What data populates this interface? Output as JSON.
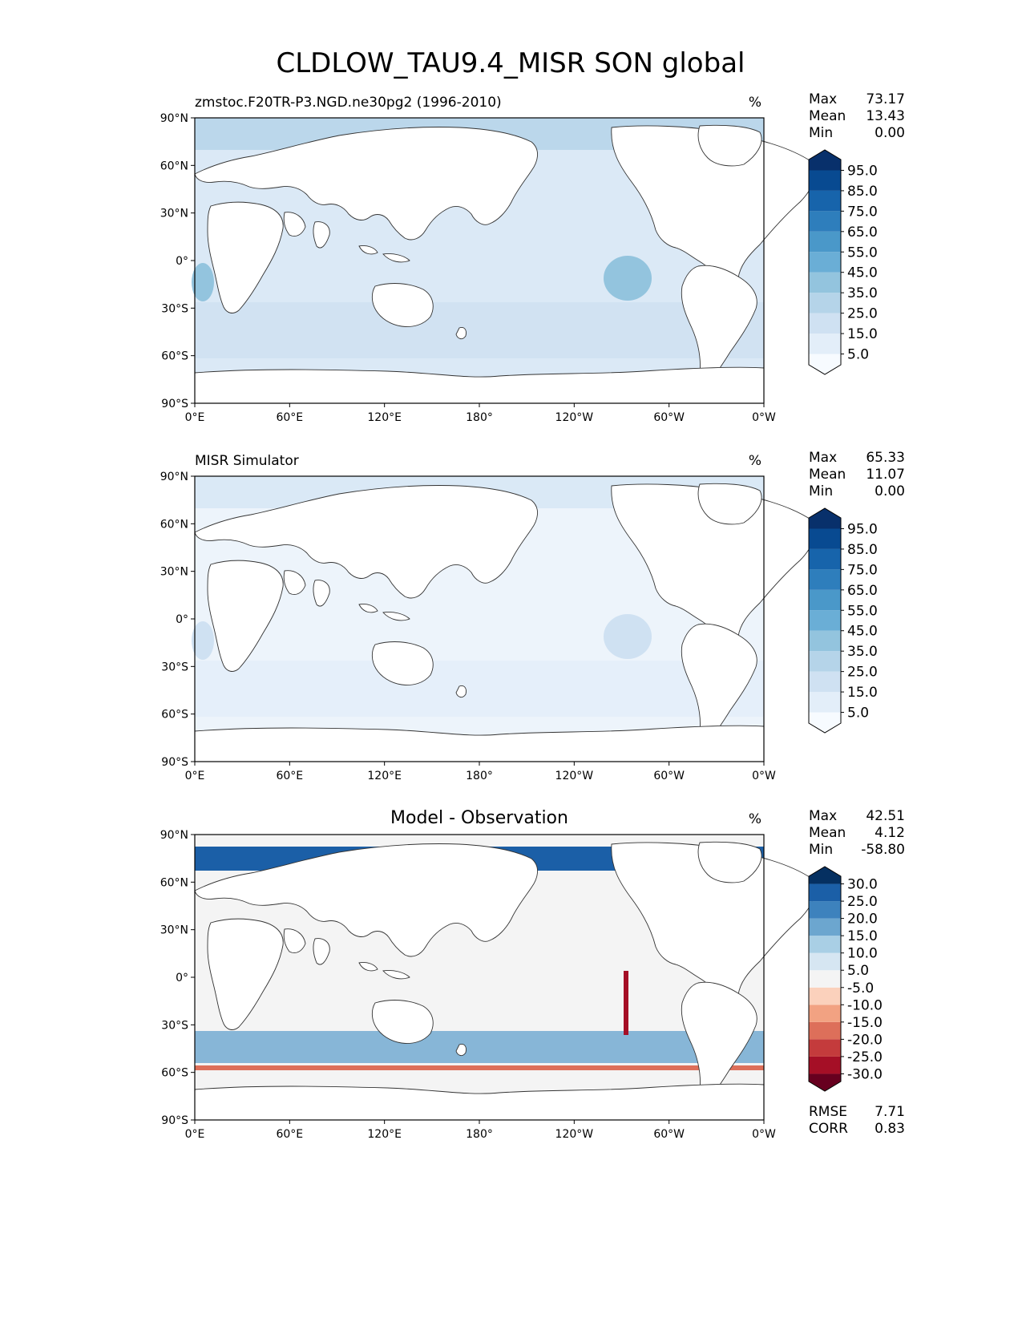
{
  "figure_title": "CLDLOW_TAU9.4_MISR SON global",
  "panels": [
    {
      "id": "test",
      "left_title": "zmstoc.F20TR-P3.NGD.ne30pg2 (1996-2010)",
      "center_title": "",
      "units": "%",
      "stats": [
        {
          "label": "Max",
          "value": "73.17"
        },
        {
          "label": "Mean",
          "value": "13.43"
        },
        {
          "label": "Min",
          "value": "0.00"
        }
      ],
      "colorbar": {
        "labels": [
          "95.0",
          "85.0",
          "75.0",
          "65.0",
          "55.0",
          "45.0",
          "35.0",
          "25.0",
          "15.0",
          "5.0"
        ],
        "colors_bottom_to_top": [
          "#f7fbff",
          "#e3eef9",
          "#cfe1f2",
          "#b5d4e9",
          "#93c4de",
          "#6aaed6",
          "#4a98c9",
          "#2e7ebc",
          "#1764ab",
          "#084a91",
          "#08306b"
        ]
      },
      "metrics": []
    },
    {
      "id": "reference",
      "left_title": "MISR Simulator",
      "center_title": "",
      "units": "%",
      "stats": [
        {
          "label": "Max",
          "value": "65.33"
        },
        {
          "label": "Mean",
          "value": "11.07"
        },
        {
          "label": "Min",
          "value": "0.00"
        }
      ],
      "colorbar": {
        "labels": [
          "95.0",
          "85.0",
          "75.0",
          "65.0",
          "55.0",
          "45.0",
          "35.0",
          "25.0",
          "15.0",
          "5.0"
        ],
        "colors_bottom_to_top": [
          "#f7fbff",
          "#e3eef9",
          "#cfe1f2",
          "#b5d4e9",
          "#93c4de",
          "#6aaed6",
          "#4a98c9",
          "#2e7ebc",
          "#1764ab",
          "#084a91",
          "#08306b"
        ]
      },
      "metrics": []
    },
    {
      "id": "difference",
      "left_title": "",
      "center_title": "Model - Observation",
      "units": "%",
      "stats": [
        {
          "label": "Max",
          "value": "42.51"
        },
        {
          "label": "Mean",
          "value": "4.12"
        },
        {
          "label": "Min",
          "value": "-58.80"
        }
      ],
      "colorbar": {
        "labels": [
          "30.0",
          "25.0",
          "20.0",
          "15.0",
          "10.0",
          "5.0",
          "-5.0",
          "-10.0",
          "-15.0",
          "-20.0",
          "-25.0",
          "-30.0"
        ],
        "colors_bottom_to_top": [
          "#67001f",
          "#a50f26",
          "#c43b3c",
          "#dd6f5a",
          "#f2a282",
          "#fbd1bc",
          "#f4f4f4",
          "#d6e6f2",
          "#a9cfe5",
          "#6ca6cf",
          "#3d82bd",
          "#1b5fa7",
          "#053061"
        ]
      },
      "metrics": [
        {
          "label": "RMSE",
          "value": "7.71"
        },
        {
          "label": "CORR",
          "value": "0.83"
        }
      ]
    }
  ],
  "axes": {
    "lat_ticks": [
      "90°N",
      "60°N",
      "30°N",
      "0°",
      "30°S",
      "60°S",
      "90°S"
    ],
    "lon_ticks": [
      "0°E",
      "60°E",
      "120°E",
      "180°",
      "120°W",
      "60°W",
      "0°W"
    ]
  }
}
